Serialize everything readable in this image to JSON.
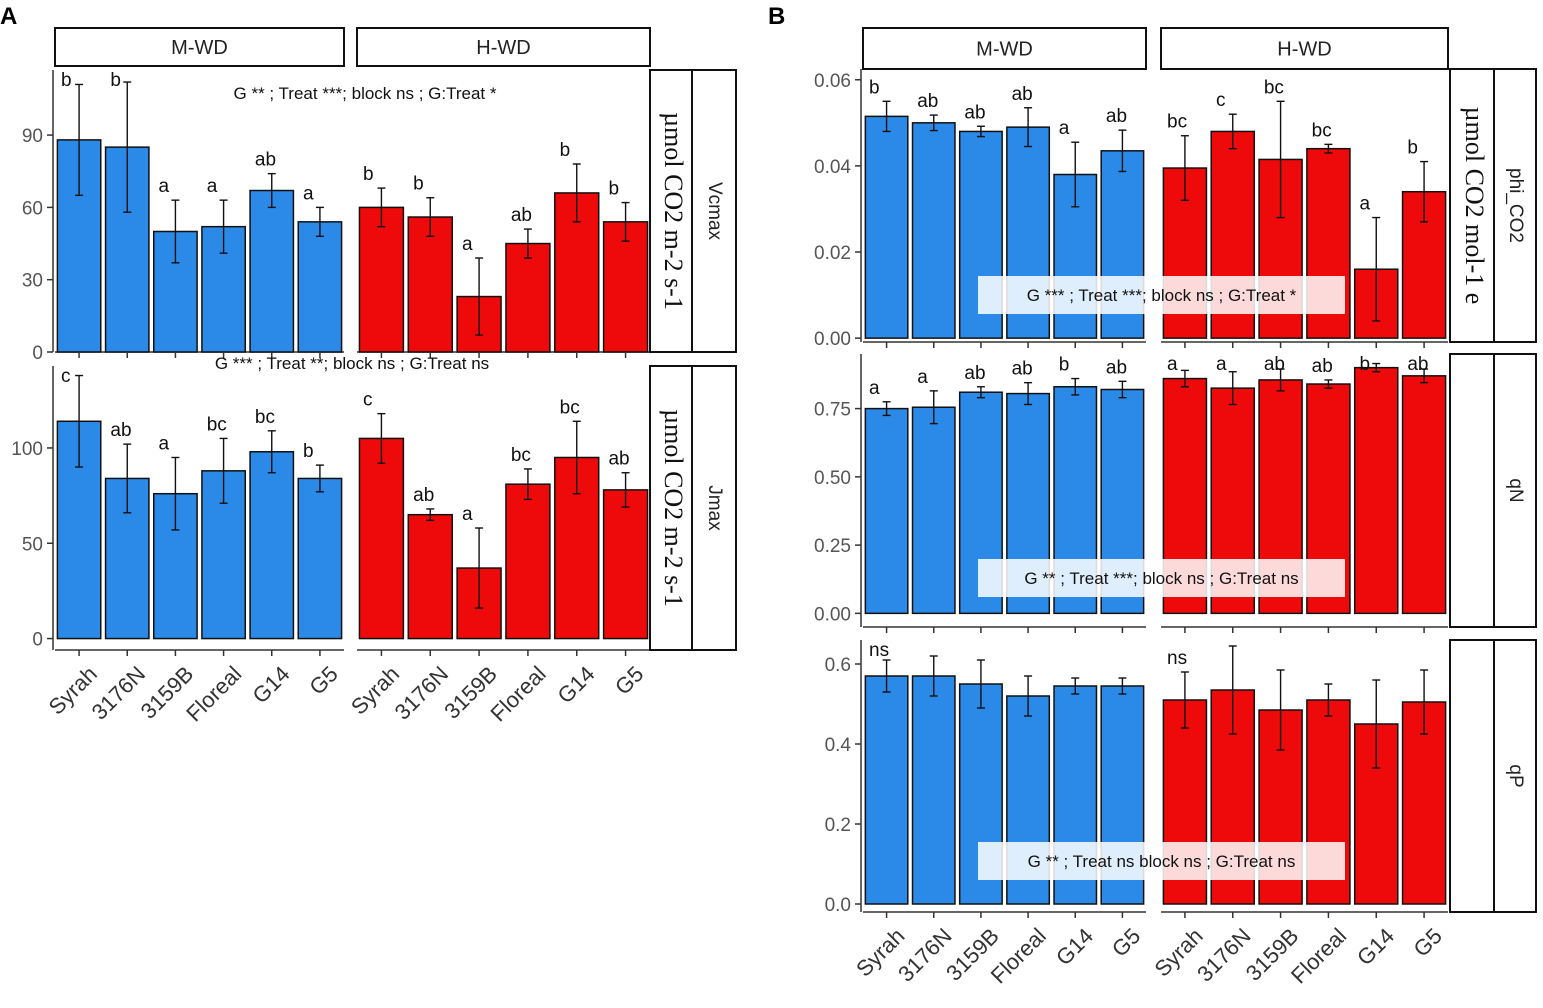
{
  "figure": {
    "panel_labels": [
      "A",
      "B"
    ],
    "colors": {
      "m_wd": "#2b8ae8",
      "h_wd": "#ee0a0a",
      "bar_edge": "#111111",
      "annotation_box": "#f2f2f2"
    }
  },
  "chart_data": [
    {
      "id": "A-Vcmax",
      "panel": "A",
      "type": "bar",
      "facet_label": "Vcmax",
      "y_label": "µmol CO2 m-2 s-1",
      "facets": [
        "M-WD",
        "H-WD"
      ],
      "categories": [
        "Syrah",
        "3176N",
        "3159B",
        "Floreal",
        "G14",
        "G5"
      ],
      "series": [
        {
          "name": "M-WD",
          "values": [
            88,
            85,
            50,
            52,
            67,
            54
          ],
          "error": [
            23,
            27,
            13,
            11,
            7,
            6
          ],
          "letters": [
            "b",
            "b",
            "a",
            "a",
            "ab",
            "a"
          ]
        },
        {
          "name": "H-WD",
          "values": [
            60,
            56,
            23,
            45,
            66,
            54
          ],
          "error": [
            8,
            8,
            16,
            6,
            12,
            8
          ],
          "letters": [
            "b",
            "b",
            "a",
            "ab",
            "b",
            "b"
          ]
        }
      ],
      "ylim": [
        0,
        117
      ],
      "yticks": [
        0,
        30,
        60,
        90
      ],
      "annotation": "G ** ; Treat ***; block ns ; G:Treat *"
    },
    {
      "id": "A-Jmax",
      "panel": "A",
      "type": "bar",
      "facet_label": "Jmax",
      "y_label": "µmol CO2 m-2 s-1",
      "facets": [
        "M-WD",
        "H-WD"
      ],
      "categories": [
        "Syrah",
        "3176N",
        "3159B",
        "Floreal",
        "G14",
        "G5"
      ],
      "series": [
        {
          "name": "M-WD",
          "values": [
            114,
            84,
            76,
            88,
            98,
            84
          ],
          "error": [
            24,
            18,
            19,
            17,
            11,
            7
          ],
          "letters": [
            "c",
            "ab",
            "a",
            "bc",
            "bc",
            "b"
          ]
        },
        {
          "name": "H-WD",
          "values": [
            105,
            65,
            37,
            81,
            95,
            78
          ],
          "error": [
            13,
            3,
            21,
            8,
            19,
            9
          ],
          "letters": [
            "c",
            "ab",
            "a",
            "bc",
            "bc",
            "ab"
          ]
        }
      ],
      "ylim": [
        -6,
        143
      ],
      "yticks": [
        0,
        50,
        100
      ],
      "annotation": "G *** ; Treat **; block ns ; G:Treat ns"
    },
    {
      "id": "B-phi_CO2",
      "panel": "B",
      "type": "bar",
      "facet_label": "phi_CO2",
      "y_label": "µmol CO2 mol-1 e",
      "facets": [
        "M-WD",
        "H-WD"
      ],
      "categories": [
        "Syrah",
        "3176N",
        "3159B",
        "Floreal",
        "G14",
        "G5"
      ],
      "series": [
        {
          "name": "M-WD",
          "values": [
            0.0515,
            0.05,
            0.048,
            0.049,
            0.038,
            0.0435
          ],
          "error": [
            0.0035,
            0.0018,
            0.0012,
            0.0045,
            0.0075,
            0.0048
          ],
          "letters": [
            "b",
            "ab",
            "ab",
            "ab",
            "a",
            "ab"
          ]
        },
        {
          "name": "H-WD",
          "values": [
            0.0395,
            0.048,
            0.0415,
            0.044,
            0.016,
            0.034
          ],
          "error": [
            0.0075,
            0.004,
            0.0135,
            0.001,
            0.012,
            0.007
          ],
          "letters": [
            "bc",
            "c",
            "bc",
            "bc",
            "a",
            "b"
          ]
        }
      ],
      "ylim": [
        -0.0009,
        0.0625
      ],
      "yticks": [
        0.0,
        0.02,
        0.04,
        0.06
      ],
      "annotation": "G *** ; Treat ***;  block ns ; G:Treat  *"
    },
    {
      "id": "B-qN",
      "panel": "B",
      "type": "bar",
      "facet_label": "qN",
      "facets": [
        "M-WD",
        "H-WD"
      ],
      "categories": [
        "Syrah",
        "3176N",
        "3159B",
        "Floreal",
        "G14",
        "G5"
      ],
      "series": [
        {
          "name": "M-WD",
          "values": [
            0.75,
            0.755,
            0.81,
            0.805,
            0.83,
            0.82
          ],
          "error": [
            0.025,
            0.06,
            0.02,
            0.04,
            0.03,
            0.03
          ],
          "letters": [
            "a",
            "a",
            "ab",
            "ab",
            "b",
            "ab"
          ]
        },
        {
          "name": "H-WD",
          "values": [
            0.86,
            0.825,
            0.855,
            0.84,
            0.9,
            0.87
          ],
          "error": [
            0.03,
            0.06,
            0.04,
            0.015,
            0.015,
            0.025
          ],
          "letters": [
            "a",
            "a",
            "ab",
            "ab",
            "b",
            "ab"
          ]
        }
      ],
      "ylim": [
        -0.05,
        0.95
      ],
      "yticks": [
        0.0,
        0.25,
        0.5,
        0.75
      ],
      "annotation": "G ** ; Treat ***;  block ns ; G:Treat  ns"
    },
    {
      "id": "B-qP",
      "panel": "B",
      "type": "bar",
      "facet_label": "qP",
      "facets": [
        "M-WD",
        "H-WD"
      ],
      "categories": [
        "Syrah",
        "3176N",
        "3159B",
        "Floreal",
        "G14",
        "G5"
      ],
      "series": [
        {
          "name": "M-WD",
          "values": [
            0.57,
            0.57,
            0.55,
            0.52,
            0.545,
            0.545
          ],
          "error": [
            0.04,
            0.05,
            0.06,
            0.05,
            0.02,
            0.02
          ],
          "letters": [
            "ns",
            "",
            "",
            "",
            "",
            ""
          ]
        },
        {
          "name": "H-WD",
          "values": [
            0.51,
            0.535,
            0.485,
            0.51,
            0.45,
            0.505
          ],
          "error": [
            0.07,
            0.11,
            0.1,
            0.04,
            0.11,
            0.08
          ],
          "letters": [
            "ns",
            "",
            "",
            "",
            "",
            ""
          ]
        }
      ],
      "ylim": [
        -0.02,
        0.66
      ],
      "yticks": [
        0.0,
        0.2,
        0.4,
        0.6
      ],
      "annotation": "G ** ; Treat ns block ns ; G:Treat  ns"
    }
  ]
}
